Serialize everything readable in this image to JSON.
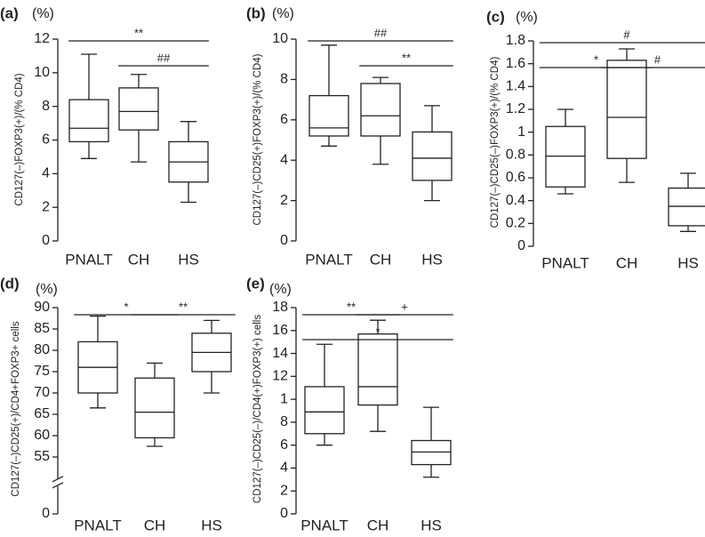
{
  "chart_data": [
    {
      "type": "box",
      "panel": "(a)",
      "unit": "(%)",
      "ylabel": "CD127(–)FOXP3(+)/(% CD4)",
      "categories": [
        "PNALT",
        "CH",
        "HS"
      ],
      "boxes": [
        {
          "min": 4.9,
          "q1": 5.9,
          "median": 6.7,
          "q3": 8.4,
          "max": 11.1
        },
        {
          "min": 4.7,
          "q1": 6.6,
          "median": 7.7,
          "q3": 9.1,
          "max": 9.9
        },
        {
          "min": 2.3,
          "q1": 3.5,
          "median": 4.7,
          "q3": 5.9,
          "max": 7.1
        }
      ],
      "ylim": [
        0,
        12
      ],
      "yticks": [
        0,
        2,
        4,
        6,
        8,
        10,
        12
      ],
      "annotations": [
        {
          "text": "**",
          "between": [
            0,
            2
          ]
        },
        {
          "text": "##",
          "between": [
            1,
            2
          ]
        }
      ]
    },
    {
      "type": "box",
      "panel": "(b)",
      "unit": "(%)",
      "ylabel": "CD127(–)CD25(+)FOXP3(+)/(% CD4)",
      "categories": [
        "PNALT",
        "CH",
        "HS"
      ],
      "boxes": [
        {
          "min": 4.7,
          "q1": 5.2,
          "median": 5.6,
          "q3": 7.2,
          "max": 9.7
        },
        {
          "min": 3.8,
          "q1": 5.2,
          "median": 6.2,
          "q3": 7.8,
          "max": 8.1
        },
        {
          "min": 2.0,
          "q1": 3.0,
          "median": 4.1,
          "q3": 5.4,
          "max": 6.7
        }
      ],
      "ylim": [
        0,
        10
      ],
      "yticks": [
        0,
        2,
        4,
        6,
        8,
        10
      ],
      "annotations": [
        {
          "text": "##",
          "between": [
            0,
            2
          ]
        },
        {
          "text": "**",
          "between": [
            1,
            2
          ]
        }
      ]
    },
    {
      "type": "box",
      "panel": "(c)",
      "unit": "(%)",
      "ylabel": "CD127(–)CD25(–)FOXP3(+)/(% CD4)",
      "categories": [
        "PNALT",
        "CH",
        "HS"
      ],
      "boxes": [
        {
          "min": 0.46,
          "q1": 0.52,
          "median": 0.79,
          "q3": 1.05,
          "max": 1.2
        },
        {
          "min": 0.56,
          "q1": 0.77,
          "median": 1.13,
          "q3": 1.63,
          "max": 1.73
        },
        {
          "min": 0.13,
          "q1": 0.18,
          "median": 0.35,
          "q3": 0.51,
          "max": 0.64
        }
      ],
      "ylim": [
        0,
        1.8
      ],
      "yticks": [
        0,
        0.2,
        0.4,
        0.6,
        0.8,
        1,
        1.2,
        1.4,
        1.6,
        1.8
      ],
      "annotations": [
        {
          "text": "#",
          "between": [
            0,
            2
          ]
        },
        {
          "text": "*",
          "between": [
            0,
            1
          ]
        },
        {
          "text": "#",
          "between": [
            1,
            2
          ]
        }
      ]
    },
    {
      "type": "box",
      "panel": "(d)",
      "unit": "(%)",
      "ylabel": "CD127(–)CD25(+)/CD4+FOXP3+ cells",
      "categories": [
        "PNALT",
        "CH",
        "HS"
      ],
      "boxes": [
        {
          "min": 66.5,
          "q1": 70,
          "median": 76,
          "q3": 82,
          "max": 88
        },
        {
          "min": 57.5,
          "q1": 59.5,
          "median": 65.5,
          "q3": 73.5,
          "max": 77
        },
        {
          "min": 70,
          "q1": 75,
          "median": 79.5,
          "q3": 84,
          "max": 87
        }
      ],
      "ylim": [
        0,
        90
      ],
      "yticks": [
        0,
        55,
        60,
        65,
        70,
        75,
        80,
        85,
        90
      ],
      "axis_break": true,
      "annotations": [
        {
          "text": "*",
          "between": [
            0,
            1
          ]
        },
        {
          "text": "**",
          "between": [
            1,
            2
          ]
        }
      ]
    },
    {
      "type": "box",
      "panel": "(e)",
      "unit": "(%)",
      "ylabel": "CD127(–)CD25(–)/CD4(+)FOXP3(+) cells",
      "categories": [
        "PNALT",
        "CH",
        "HS"
      ],
      "boxes": [
        {
          "min": 6.0,
          "q1": 7.0,
          "median": 8.9,
          "q3": 11.1,
          "max": 14.8
        },
        {
          "min": 7.2,
          "q1": 9.5,
          "median": 11.1,
          "q3": 15.7,
          "max": 16.9
        },
        {
          "min": 3.2,
          "q1": 4.3,
          "median": 5.4,
          "q3": 6.4,
          "max": 9.3
        }
      ],
      "ylim": [
        0,
        18
      ],
      "yticks": [
        0,
        2,
        4,
        6,
        8,
        {
          "value": 10,
          "label": "1"
        },
        12,
        14,
        16,
        18
      ],
      "annotations": [
        {
          "text": "**",
          "between": [
            0,
            1
          ]
        },
        {
          "text": "+",
          "between": [
            1,
            2
          ]
        },
        {
          "text": "*",
          "between": [
            0,
            2
          ]
        }
      ]
    }
  ]
}
